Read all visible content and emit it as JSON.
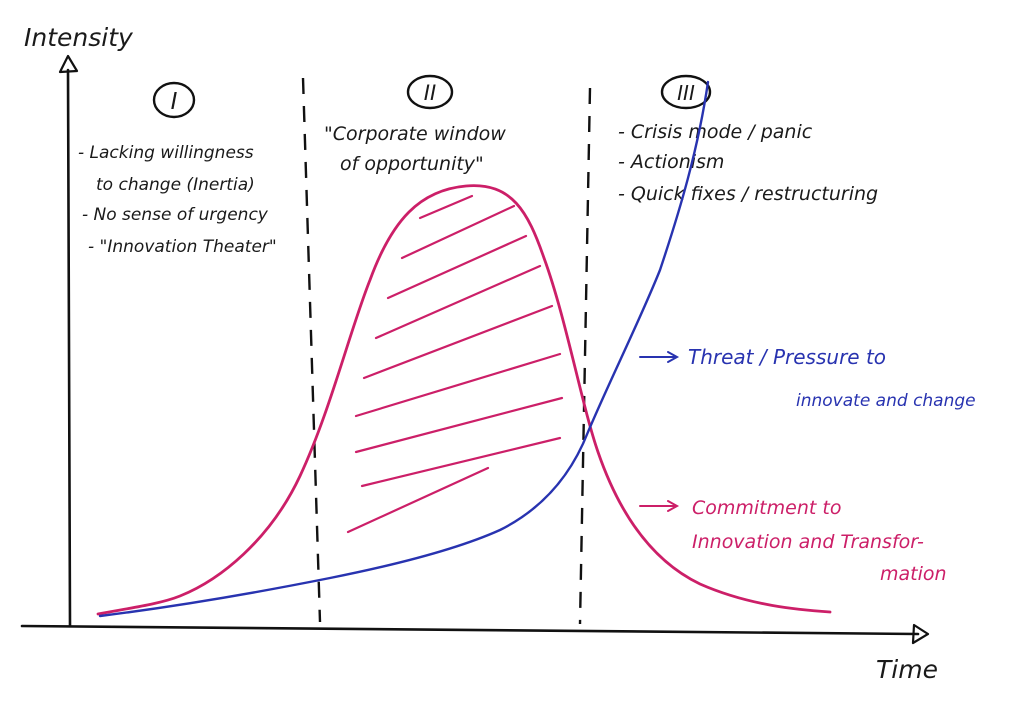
{
  "axes": {
    "y_label": "Intensity",
    "x_label": "Time"
  },
  "phases": [
    {
      "numeral": "I",
      "notes": [
        "- Lacking willingness",
        "to change (Inertia)",
        "- No sense of urgency",
        "- \"Innovation Theater\""
      ]
    },
    {
      "numeral": "II",
      "notes": [
        "\"Corporate window",
        "of opportunity\""
      ]
    },
    {
      "numeral": "III",
      "notes": [
        "- Crisis mode / panic",
        "- Actionism",
        "- Quick fixes / restructuring"
      ]
    }
  ],
  "curves": {
    "threat": {
      "label_lines": [
        "Threat / Pressure to",
        "innovate and change"
      ],
      "color": "#2833b0"
    },
    "commitment": {
      "label_lines": [
        "Commitment to",
        "Innovation and Transfor-",
        "mation"
      ],
      "color": "#cc1f68"
    }
  }
}
